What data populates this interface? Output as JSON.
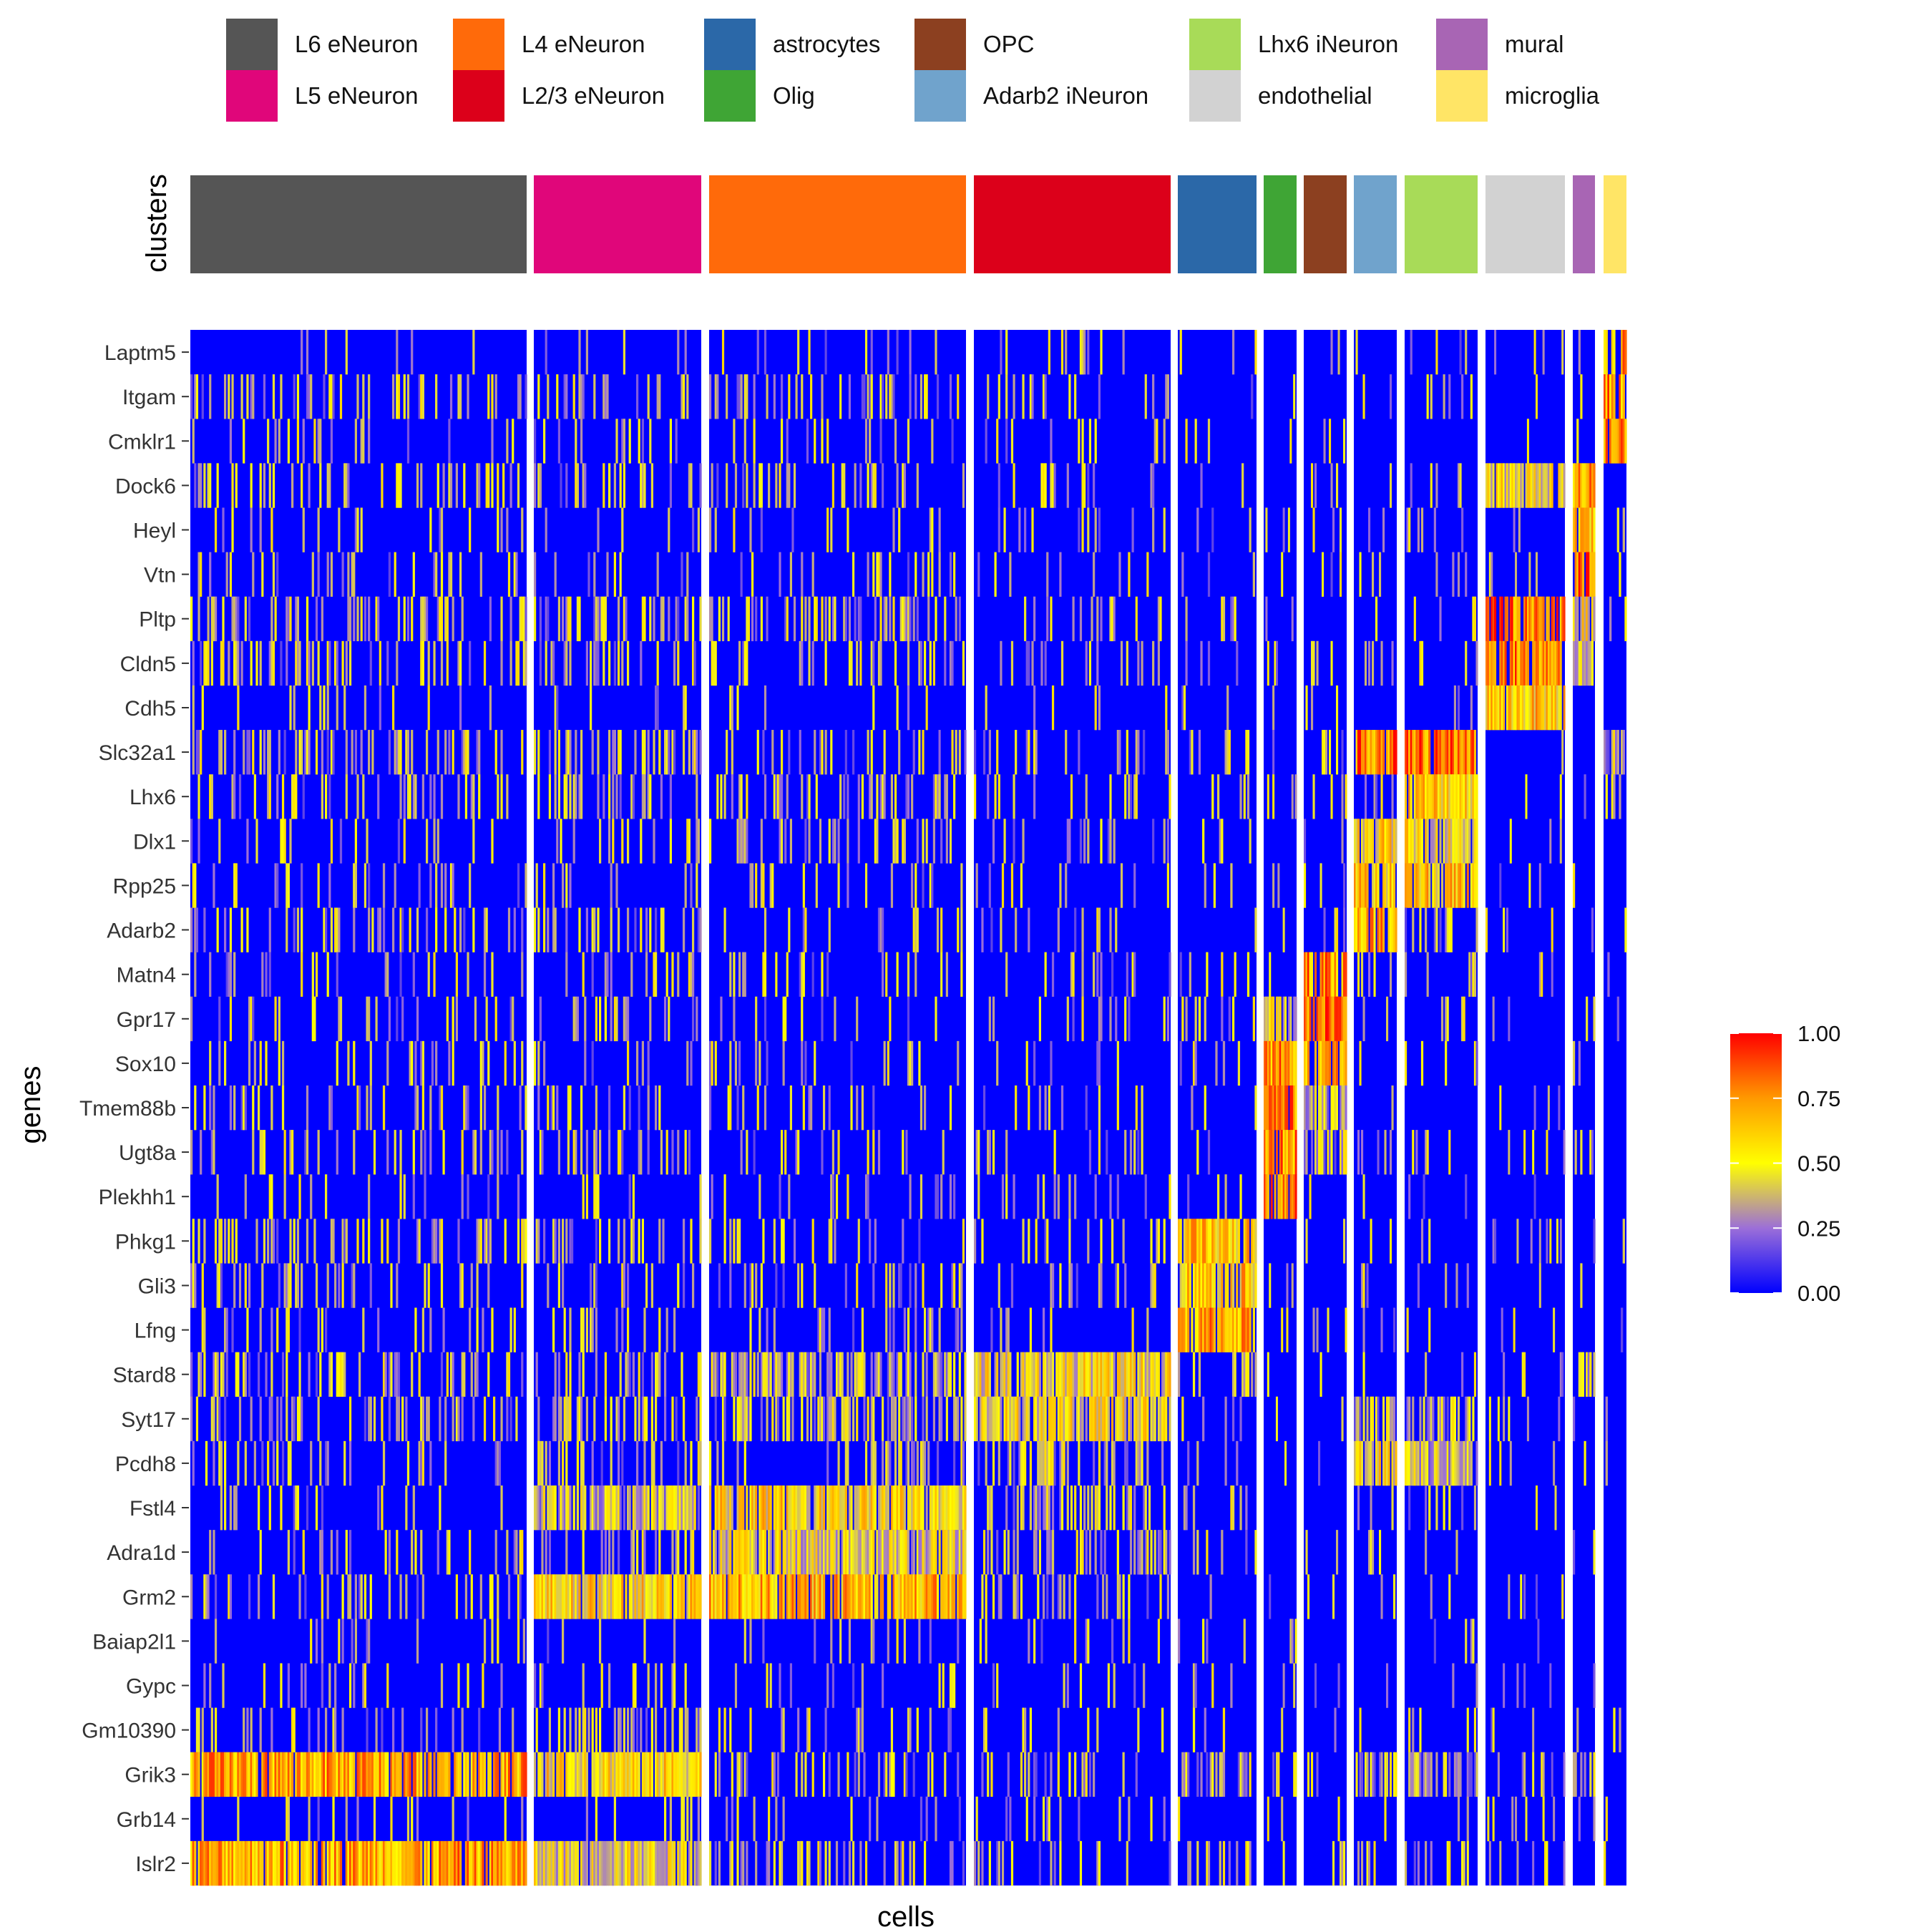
{
  "chart_data": {
    "type": "heatmap",
    "xlabel": "cells",
    "ylabel": "genes",
    "annotation_label": "clusters",
    "cluster_legend": [
      {
        "name": "L6 eNeuron",
        "color": "#555555"
      },
      {
        "name": "L5 eNeuron",
        "color": "#E0067A"
      },
      {
        "name": "L4 eNeuron",
        "color": "#FF6A0A"
      },
      {
        "name": "L2/3 eNeuron",
        "color": "#DC001A"
      },
      {
        "name": "astrocytes",
        "color": "#2B68A8"
      },
      {
        "name": "Olig",
        "color": "#3FA535"
      },
      {
        "name": "OPC",
        "color": "#8C4020"
      },
      {
        "name": "Adarb2 iNeuron",
        "color": "#70A3CC"
      },
      {
        "name": "Lhx6 iNeuron",
        "color": "#A8DB58"
      },
      {
        "name": "endothelial",
        "color": "#D2D2D2"
      },
      {
        "name": "mural",
        "color": "#A865B4"
      },
      {
        "name": "microglia",
        "color": "#FFE566"
      }
    ],
    "cluster_order": [
      "L6 eNeuron",
      "L5 eNeuron",
      "L4 eNeuron",
      "L2/3 eNeuron",
      "astrocytes",
      "Olig",
      "OPC",
      "Adarb2 iNeuron",
      "Lhx6 iNeuron",
      "endothelial",
      "mural",
      "microglia"
    ],
    "cluster_cell_counts": [
      180,
      90,
      140,
      106,
      42,
      19,
      24,
      24,
      40,
      46,
      12,
      12
    ],
    "genes": [
      "Laptm5",
      "Itgam",
      "Cmklr1",
      "Dock6",
      "Heyl",
      "Vtn",
      "Pltp",
      "Cldn5",
      "Cdh5",
      "Slc32a1",
      "Lhx6",
      "Dlx1",
      "Rpp25",
      "Adarb2",
      "Matn4",
      "Gpr17",
      "Sox10",
      "Tmem88b",
      "Ugt8a",
      "Plekhh1",
      "Phkg1",
      "Gli3",
      "Lfng",
      "Stard8",
      "Syt17",
      "Pcdh8",
      "Fstl4",
      "Adra1d",
      "Grm2",
      "Baiap2l1",
      "Gypc",
      "Gm10390",
      "Grik3",
      "Grb14",
      "Islr2"
    ],
    "mean_expression": [
      [
        0.03,
        0.03,
        0.03,
        0.03,
        0.02,
        0.03,
        0.04,
        0.03,
        0.03,
        0.02,
        0.02,
        0.75
      ],
      [
        0.1,
        0.1,
        0.08,
        0.06,
        0.02,
        0.02,
        0.02,
        0.03,
        0.03,
        0.02,
        0.02,
        0.75
      ],
      [
        0.05,
        0.05,
        0.04,
        0.04,
        0.02,
        0.02,
        0.02,
        0.02,
        0.02,
        0.02,
        0.02,
        0.8
      ],
      [
        0.1,
        0.1,
        0.08,
        0.04,
        0.04,
        0.03,
        0.04,
        0.03,
        0.04,
        0.5,
        0.7,
        0.02
      ],
      [
        0.04,
        0.04,
        0.04,
        0.03,
        0.04,
        0.03,
        0.03,
        0.03,
        0.03,
        0.03,
        0.6,
        0.02
      ],
      [
        0.05,
        0.04,
        0.04,
        0.03,
        0.03,
        0.03,
        0.03,
        0.03,
        0.03,
        0.05,
        0.85,
        0.02
      ],
      [
        0.12,
        0.12,
        0.12,
        0.06,
        0.1,
        0.04,
        0.05,
        0.05,
        0.05,
        0.8,
        0.5,
        0.02
      ],
      [
        0.1,
        0.1,
        0.08,
        0.04,
        0.04,
        0.03,
        0.03,
        0.04,
        0.04,
        0.75,
        0.3,
        0.02
      ],
      [
        0.03,
        0.03,
        0.03,
        0.03,
        0.03,
        0.02,
        0.02,
        0.03,
        0.03,
        0.6,
        0.05,
        0.02
      ],
      [
        0.12,
        0.15,
        0.08,
        0.06,
        0.05,
        0.04,
        0.05,
        0.8,
        0.8,
        0.02,
        0.02,
        0.2
      ],
      [
        0.08,
        0.12,
        0.08,
        0.06,
        0.04,
        0.03,
        0.04,
        0.1,
        0.6,
        0.02,
        0.02,
        0.05
      ],
      [
        0.06,
        0.06,
        0.08,
        0.05,
        0.04,
        0.02,
        0.03,
        0.55,
        0.5,
        0.05,
        0.02,
        0.02
      ],
      [
        0.06,
        0.04,
        0.06,
        0.04,
        0.03,
        0.02,
        0.03,
        0.6,
        0.6,
        0.02,
        0.02,
        0.02
      ],
      [
        0.08,
        0.08,
        0.07,
        0.05,
        0.03,
        0.02,
        0.03,
        0.7,
        0.1,
        0.02,
        0.02,
        0.02
      ],
      [
        0.06,
        0.06,
        0.06,
        0.04,
        0.05,
        0.05,
        0.75,
        0.05,
        0.04,
        0.03,
        0.02,
        0.02
      ],
      [
        0.05,
        0.06,
        0.05,
        0.04,
        0.05,
        0.45,
        0.8,
        0.03,
        0.03,
        0.02,
        0.02,
        0.02
      ],
      [
        0.05,
        0.05,
        0.05,
        0.04,
        0.05,
        0.75,
        0.75,
        0.03,
        0.03,
        0.05,
        0.02,
        0.02
      ],
      [
        0.08,
        0.06,
        0.06,
        0.05,
        0.04,
        0.8,
        0.3,
        0.03,
        0.03,
        0.02,
        0.02,
        0.02
      ],
      [
        0.06,
        0.06,
        0.05,
        0.05,
        0.04,
        0.75,
        0.3,
        0.03,
        0.03,
        0.02,
        0.1,
        0.02
      ],
      [
        0.04,
        0.04,
        0.04,
        0.04,
        0.02,
        0.8,
        0.03,
        0.02,
        0.02,
        0.02,
        0.02,
        0.02
      ],
      [
        0.1,
        0.1,
        0.08,
        0.06,
        0.6,
        0.02,
        0.03,
        0.03,
        0.05,
        0.04,
        0.03,
        0.02
      ],
      [
        0.08,
        0.08,
        0.06,
        0.05,
        0.6,
        0.02,
        0.03,
        0.04,
        0.05,
        0.02,
        0.02,
        0.03
      ],
      [
        0.06,
        0.05,
        0.05,
        0.05,
        0.7,
        0.02,
        0.03,
        0.03,
        0.03,
        0.02,
        0.02,
        0.05
      ],
      [
        0.12,
        0.1,
        0.22,
        0.5,
        0.06,
        0.03,
        0.04,
        0.05,
        0.04,
        0.06,
        0.2,
        0.02
      ],
      [
        0.1,
        0.12,
        0.18,
        0.5,
        0.04,
        0.04,
        0.04,
        0.25,
        0.2,
        0.04,
        0.02,
        0.04
      ],
      [
        0.08,
        0.1,
        0.1,
        0.15,
        0.04,
        0.03,
        0.03,
        0.5,
        0.35,
        0.03,
        0.05,
        0.02
      ],
      [
        0.05,
        0.4,
        0.55,
        0.15,
        0.03,
        0.03,
        0.03,
        0.05,
        0.08,
        0.03,
        0.02,
        0.02
      ],
      [
        0.04,
        0.1,
        0.45,
        0.12,
        0.03,
        0.02,
        0.03,
        0.03,
        0.04,
        0.02,
        0.05,
        0.02
      ],
      [
        0.08,
        0.55,
        0.65,
        0.12,
        0.04,
        0.03,
        0.04,
        0.04,
        0.05,
        0.02,
        0.02,
        0.03
      ],
      [
        0.04,
        0.03,
        0.03,
        0.04,
        0.05,
        0.02,
        0.02,
        0.02,
        0.02,
        0.02,
        0.02,
        0.02
      ],
      [
        0.03,
        0.05,
        0.04,
        0.05,
        0.03,
        0.02,
        0.02,
        0.02,
        0.02,
        0.02,
        0.02,
        0.02
      ],
      [
        0.06,
        0.15,
        0.06,
        0.06,
        0.03,
        0.05,
        0.04,
        0.05,
        0.05,
        0.02,
        0.02,
        0.02
      ],
      [
        0.7,
        0.55,
        0.1,
        0.08,
        0.15,
        0.06,
        0.06,
        0.2,
        0.25,
        0.08,
        0.2,
        0.02
      ],
      [
        0.03,
        0.03,
        0.03,
        0.03,
        0.03,
        0.03,
        0.02,
        0.03,
        0.03,
        0.03,
        0.02,
        0.02
      ],
      [
        0.7,
        0.45,
        0.1,
        0.06,
        0.08,
        0.03,
        0.04,
        0.08,
        0.1,
        0.06,
        0.02,
        0.02
      ]
    ],
    "color_scale": {
      "min": 0,
      "max": 1,
      "ticks": [
        "1.00",
        "0.75",
        "0.50",
        "0.25",
        "0.00"
      ],
      "stops": [
        {
          "value": 0.0,
          "color": "#0000FF"
        },
        {
          "value": 0.25,
          "color": "#9C6FD8"
        },
        {
          "value": 0.5,
          "color": "#FFFF00"
        },
        {
          "value": 0.75,
          "color": "#FF9900"
        },
        {
          "value": 1.0,
          "color": "#FF0000"
        }
      ]
    }
  }
}
